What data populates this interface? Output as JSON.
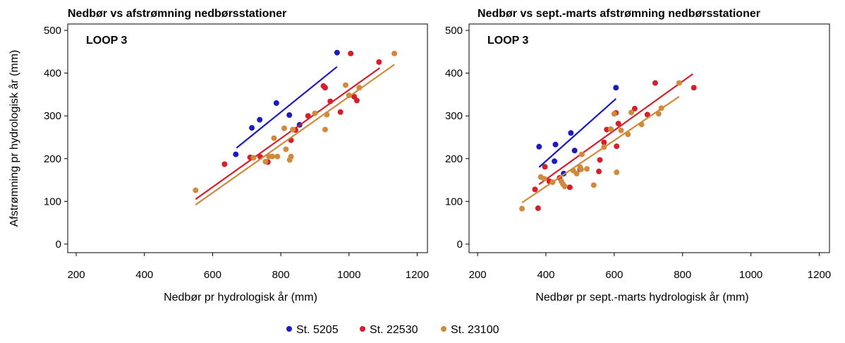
{
  "colors": {
    "s5205": "#1b1bbf",
    "s22530": "#d4202a",
    "s23100": "#d08a3c"
  },
  "legend": [
    {
      "label": "St. 5205",
      "color": "#1b1bbf"
    },
    {
      "label": "St. 22530",
      "color": "#d4202a"
    },
    {
      "label": "St. 23100",
      "color": "#d08a3c"
    }
  ],
  "ylabel": "Afstrømning pr hydrologisk år (mm)",
  "chart_data": [
    {
      "type": "scatter",
      "title": "Nedbør vs afstrømning nedbørsstationer",
      "annotation": "LOOP 3",
      "xlabel": "Nedbør pr hydrologisk år (mm)",
      "ylabel": "Afstrømning pr hydrologisk år (mm)",
      "xlim": [
        175,
        1230
      ],
      "ylim": [
        -20,
        515
      ],
      "xticks": [
        200,
        400,
        600,
        800,
        1000,
        1200
      ],
      "yticks": [
        0,
        100,
        200,
        300,
        400,
        500
      ],
      "series": [
        {
          "name": "St. 5205",
          "color": "#1b1bbf",
          "points": [
            [
              668,
              210
            ],
            [
              715,
              272
            ],
            [
              738,
              291
            ],
            [
              787,
              330
            ],
            [
              825,
              302
            ],
            [
              855,
              279
            ],
            [
              965,
              448
            ]
          ],
          "fit": [
            [
              670,
              225
            ],
            [
              965,
              415
            ]
          ]
        },
        {
          "name": "St. 22530",
          "color": "#d4202a",
          "points": [
            [
              635,
              187
            ],
            [
              710,
              203
            ],
            [
              740,
              204
            ],
            [
              762,
              192
            ],
            [
              830,
              243
            ],
            [
              843,
              267
            ],
            [
              880,
              300
            ],
            [
              925,
              370
            ],
            [
              930,
              366
            ],
            [
              945,
              334
            ],
            [
              975,
              309
            ],
            [
              1005,
              446
            ],
            [
              1015,
              345
            ],
            [
              1023,
              336
            ],
            [
              1088,
              426
            ]
          ],
          "fit": [
            [
              550,
              105
            ],
            [
              1090,
              412
            ]
          ]
        },
        {
          "name": "St. 23100",
          "color": "#d08a3c",
          "points": [
            [
              550,
              126
            ],
            [
              720,
              202
            ],
            [
              755,
              193
            ],
            [
              765,
              205
            ],
            [
              775,
              205
            ],
            [
              780,
              248
            ],
            [
              790,
              205
            ],
            [
              810,
              271
            ],
            [
              815,
              222
            ],
            [
              826,
              197
            ],
            [
              830,
              205
            ],
            [
              835,
              268
            ],
            [
              900,
              306
            ],
            [
              930,
              268
            ],
            [
              935,
              303
            ],
            [
              990,
              372
            ],
            [
              1000,
              348
            ],
            [
              1030,
              366
            ],
            [
              1133,
              446
            ]
          ],
          "fit": [
            [
              550,
              92
            ],
            [
              1133,
              420
            ]
          ]
        }
      ]
    },
    {
      "type": "scatter",
      "title": "Nedbør vs sept.-marts afstrømning nedbørsstationer",
      "annotation": "LOOP 3",
      "xlabel": "Nedbør pr sept.-marts hydrologisk år (mm)",
      "ylabel": "",
      "xlim": [
        175,
        1230
      ],
      "ylim": [
        -20,
        515
      ],
      "xticks": [
        200,
        400,
        600,
        800,
        1000,
        1200
      ],
      "yticks": [
        0,
        100,
        200,
        300,
        400,
        500
      ],
      "series": [
        {
          "name": "St. 5205",
          "color": "#1b1bbf",
          "points": [
            [
              380,
              228
            ],
            [
              425,
              194
            ],
            [
              428,
              233
            ],
            [
              452,
              165
            ],
            [
              473,
              260
            ],
            [
              484,
              219
            ],
            [
              605,
              366
            ]
          ],
          "fit": [
            [
              380,
              180
            ],
            [
              605,
              340
            ]
          ]
        },
        {
          "name": "St. 22530",
          "color": "#d4202a",
          "points": [
            [
              368,
              128
            ],
            [
              377,
              84
            ],
            [
              397,
              181
            ],
            [
              410,
              147
            ],
            [
              440,
              155
            ],
            [
              470,
              133
            ],
            [
              500,
              175
            ],
            [
              555,
              170
            ],
            [
              558,
              197
            ],
            [
              570,
              238
            ],
            [
              578,
              268
            ],
            [
              605,
              307
            ],
            [
              607,
              229
            ],
            [
              612,
              282
            ],
            [
              660,
              317
            ],
            [
              697,
              303
            ],
            [
              720,
              377
            ],
            [
              833,
              366
            ]
          ],
          "fit": [
            [
              380,
              140
            ],
            [
              830,
              398
            ]
          ]
        },
        {
          "name": "St. 23100",
          "color": "#d08a3c",
          "points": [
            [
              330,
              83
            ],
            [
              385,
              157
            ],
            [
              395,
              153
            ],
            [
              420,
              145
            ],
            [
              445,
              147
            ],
            [
              450,
              140
            ],
            [
              455,
              135
            ],
            [
              480,
              172
            ],
            [
              490,
              165
            ],
            [
              500,
              180
            ],
            [
              503,
              175
            ],
            [
              505,
              210
            ],
            [
              520,
              176
            ],
            [
              540,
              138
            ],
            [
              570,
              227
            ],
            [
              590,
              269
            ],
            [
              600,
              305
            ],
            [
              607,
              168
            ],
            [
              620,
              266
            ],
            [
              640,
              257
            ],
            [
              650,
              308
            ],
            [
              680,
              280
            ],
            [
              730,
              305
            ],
            [
              738,
              318
            ],
            [
              790,
              377
            ]
          ],
          "fit": [
            [
              330,
              97
            ],
            [
              790,
              345
            ]
          ]
        }
      ]
    }
  ]
}
